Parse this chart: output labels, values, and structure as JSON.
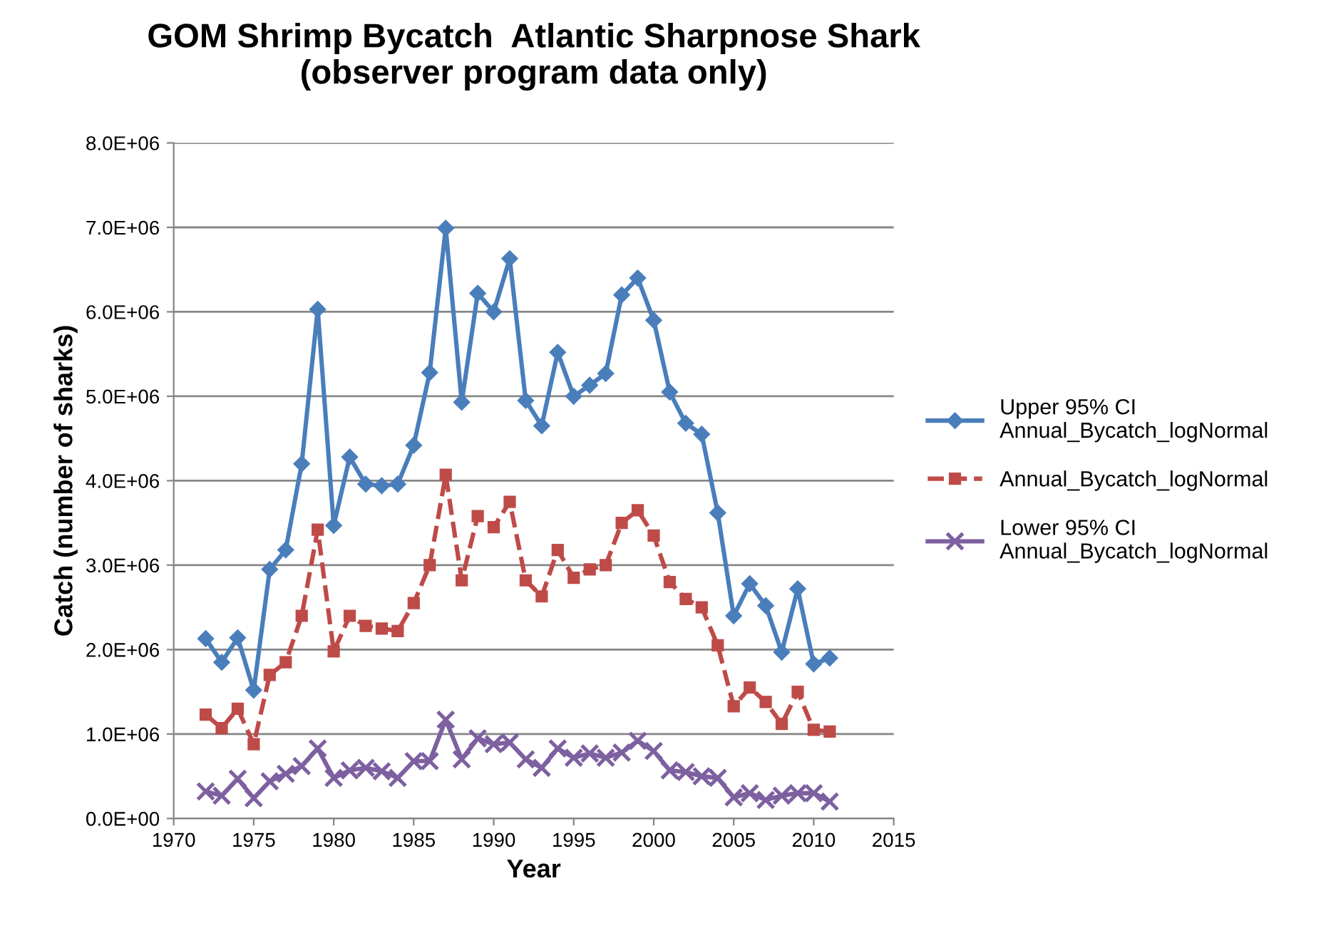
{
  "chart_data": {
    "type": "line",
    "title": "GOM Shrimp Bycatch  Atlantic Sharpnose Shark\n(observer program data only)",
    "xlabel": "Year",
    "ylabel": "Catch (number of sharks)",
    "x": [
      1972,
      1973,
      1974,
      1975,
      1976,
      1977,
      1978,
      1979,
      1980,
      1981,
      1982,
      1983,
      1984,
      1985,
      1986,
      1987,
      1988,
      1989,
      1990,
      1991,
      1992,
      1993,
      1994,
      1995,
      1996,
      1997,
      1998,
      1999,
      2000,
      2001,
      2002,
      2003,
      2004,
      2005,
      2006,
      2007,
      2008,
      2009,
      2010,
      2011
    ],
    "series": [
      {
        "name": "Upper 95% CI\nAnnual_Bycatch_logNormal",
        "color": "#4a7ebb",
        "marker": "diamond",
        "line_style": "solid",
        "values": [
          2130000,
          1850000,
          2140000,
          1520000,
          2950000,
          3180000,
          4200000,
          6030000,
          3470000,
          4280000,
          3960000,
          3940000,
          3960000,
          4420000,
          5280000,
          6990000,
          4930000,
          6220000,
          6000000,
          6630000,
          4950000,
          4650000,
          5520000,
          5000000,
          5130000,
          5270000,
          6200000,
          6400000,
          5900000,
          5050000,
          4680000,
          4550000,
          3620000,
          2400000,
          2780000,
          2520000,
          1970000,
          2720000,
          1830000,
          1900000
        ]
      },
      {
        "name": "Annual_Bycatch_logNormal",
        "color": "#be4b48",
        "marker": "square",
        "line_style": "dashed",
        "values": [
          1230000,
          1070000,
          1300000,
          880000,
          1700000,
          1850000,
          2400000,
          3420000,
          1980000,
          2400000,
          2280000,
          2250000,
          2220000,
          2550000,
          3000000,
          4070000,
          2820000,
          3580000,
          3450000,
          3750000,
          2820000,
          2630000,
          3180000,
          2850000,
          2950000,
          3000000,
          3500000,
          3650000,
          3350000,
          2800000,
          2600000,
          2500000,
          2050000,
          1330000,
          1550000,
          1380000,
          1120000,
          1500000,
          1050000,
          1030000
        ]
      },
      {
        "name": "Lower 95% CI\nAnnual_Bycatch_logNormal",
        "color": "#7d60a0",
        "marker": "cross",
        "line_style": "solid",
        "values": [
          320000,
          270000,
          470000,
          240000,
          440000,
          530000,
          620000,
          830000,
          480000,
          570000,
          600000,
          560000,
          480000,
          680000,
          680000,
          1170000,
          700000,
          950000,
          880000,
          900000,
          700000,
          600000,
          830000,
          720000,
          770000,
          720000,
          780000,
          920000,
          800000,
          570000,
          550000,
          500000,
          480000,
          250000,
          300000,
          220000,
          270000,
          300000,
          300000,
          200000
        ]
      }
    ],
    "xlim": [
      1970,
      2015
    ],
    "xticks": [
      1970,
      1975,
      1980,
      1985,
      1990,
      1995,
      2000,
      2005,
      2010,
      2015
    ],
    "ylim": [
      0,
      8000000
    ],
    "yticks": [
      {
        "value": 0,
        "label": "0.0E+00"
      },
      {
        "value": 1000000,
        "label": "1.0E+06"
      },
      {
        "value": 2000000,
        "label": "2.0E+06"
      },
      {
        "value": 3000000,
        "label": "3.0E+06"
      },
      {
        "value": 4000000,
        "label": "4.0E+06"
      },
      {
        "value": 5000000,
        "label": "5.0E+06"
      },
      {
        "value": 6000000,
        "label": "6.0E+06"
      },
      {
        "value": 7000000,
        "label": "7.0E+06"
      },
      {
        "value": 8000000,
        "label": "8.0E+06"
      }
    ],
    "grid": "y",
    "legend": "right"
  }
}
